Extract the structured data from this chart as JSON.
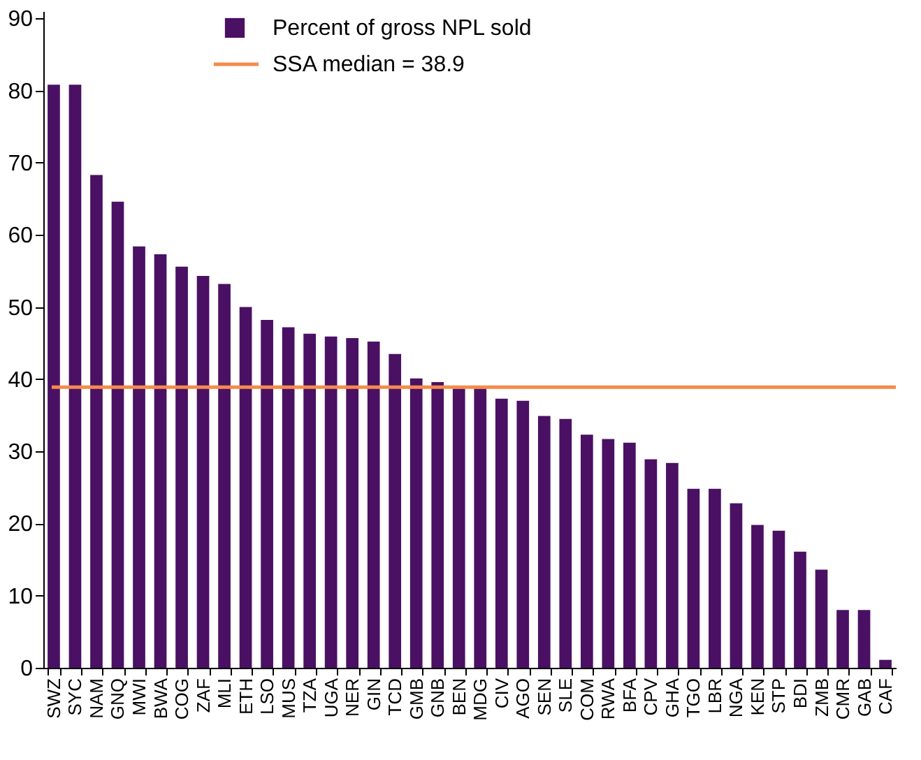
{
  "chart_data": {
    "type": "bar",
    "categories": [
      "SWZ",
      "SYC",
      "NAM",
      "GNQ",
      "MWI",
      "BWA",
      "COG",
      "ZAF",
      "MLI",
      "ETH",
      "LSO",
      "MUS",
      "TZA",
      "UGA",
      "NER",
      "GIN",
      "TCD",
      "GMB",
      "GNB",
      "BEN",
      "MDG",
      "CIV",
      "AGO",
      "SEN",
      "SLE",
      "COM",
      "RWA",
      "BFA",
      "CPV",
      "GHA",
      "TGO",
      "LBR",
      "NGA",
      "KEN",
      "STP",
      "BDI",
      "ZMB",
      "CMR",
      "GAB",
      "CAF"
    ],
    "series": [
      {
        "name": "Percent of gross NPL sold",
        "color": "#4a1063",
        "values": [
          80.8,
          80.8,
          68.3,
          64.6,
          58.4,
          57.3,
          55.6,
          54.3,
          53.2,
          50.0,
          48.2,
          47.2,
          46.3,
          45.9,
          45.7,
          45.2,
          43.5,
          40.1,
          39.6,
          38.7,
          38.7,
          37.3,
          37.0,
          34.9,
          34.5,
          32.3,
          31.7,
          31.2,
          28.9,
          28.4,
          24.8,
          24.8,
          22.8,
          19.8,
          19.0,
          16.1,
          13.6,
          8.0,
          8.0,
          1.1
        ]
      }
    ],
    "ylim": [
      0,
      91
    ],
    "yticks": [
      0,
      10,
      20,
      30,
      40,
      50,
      60,
      70,
      80,
      90
    ],
    "ref_lines": [
      {
        "axis": "y",
        "value": 38.9,
        "label": "SSA median = 38.9",
        "color": "#f58a4b",
        "line_style": "solid"
      }
    ],
    "grid": false,
    "legend": "top"
  }
}
